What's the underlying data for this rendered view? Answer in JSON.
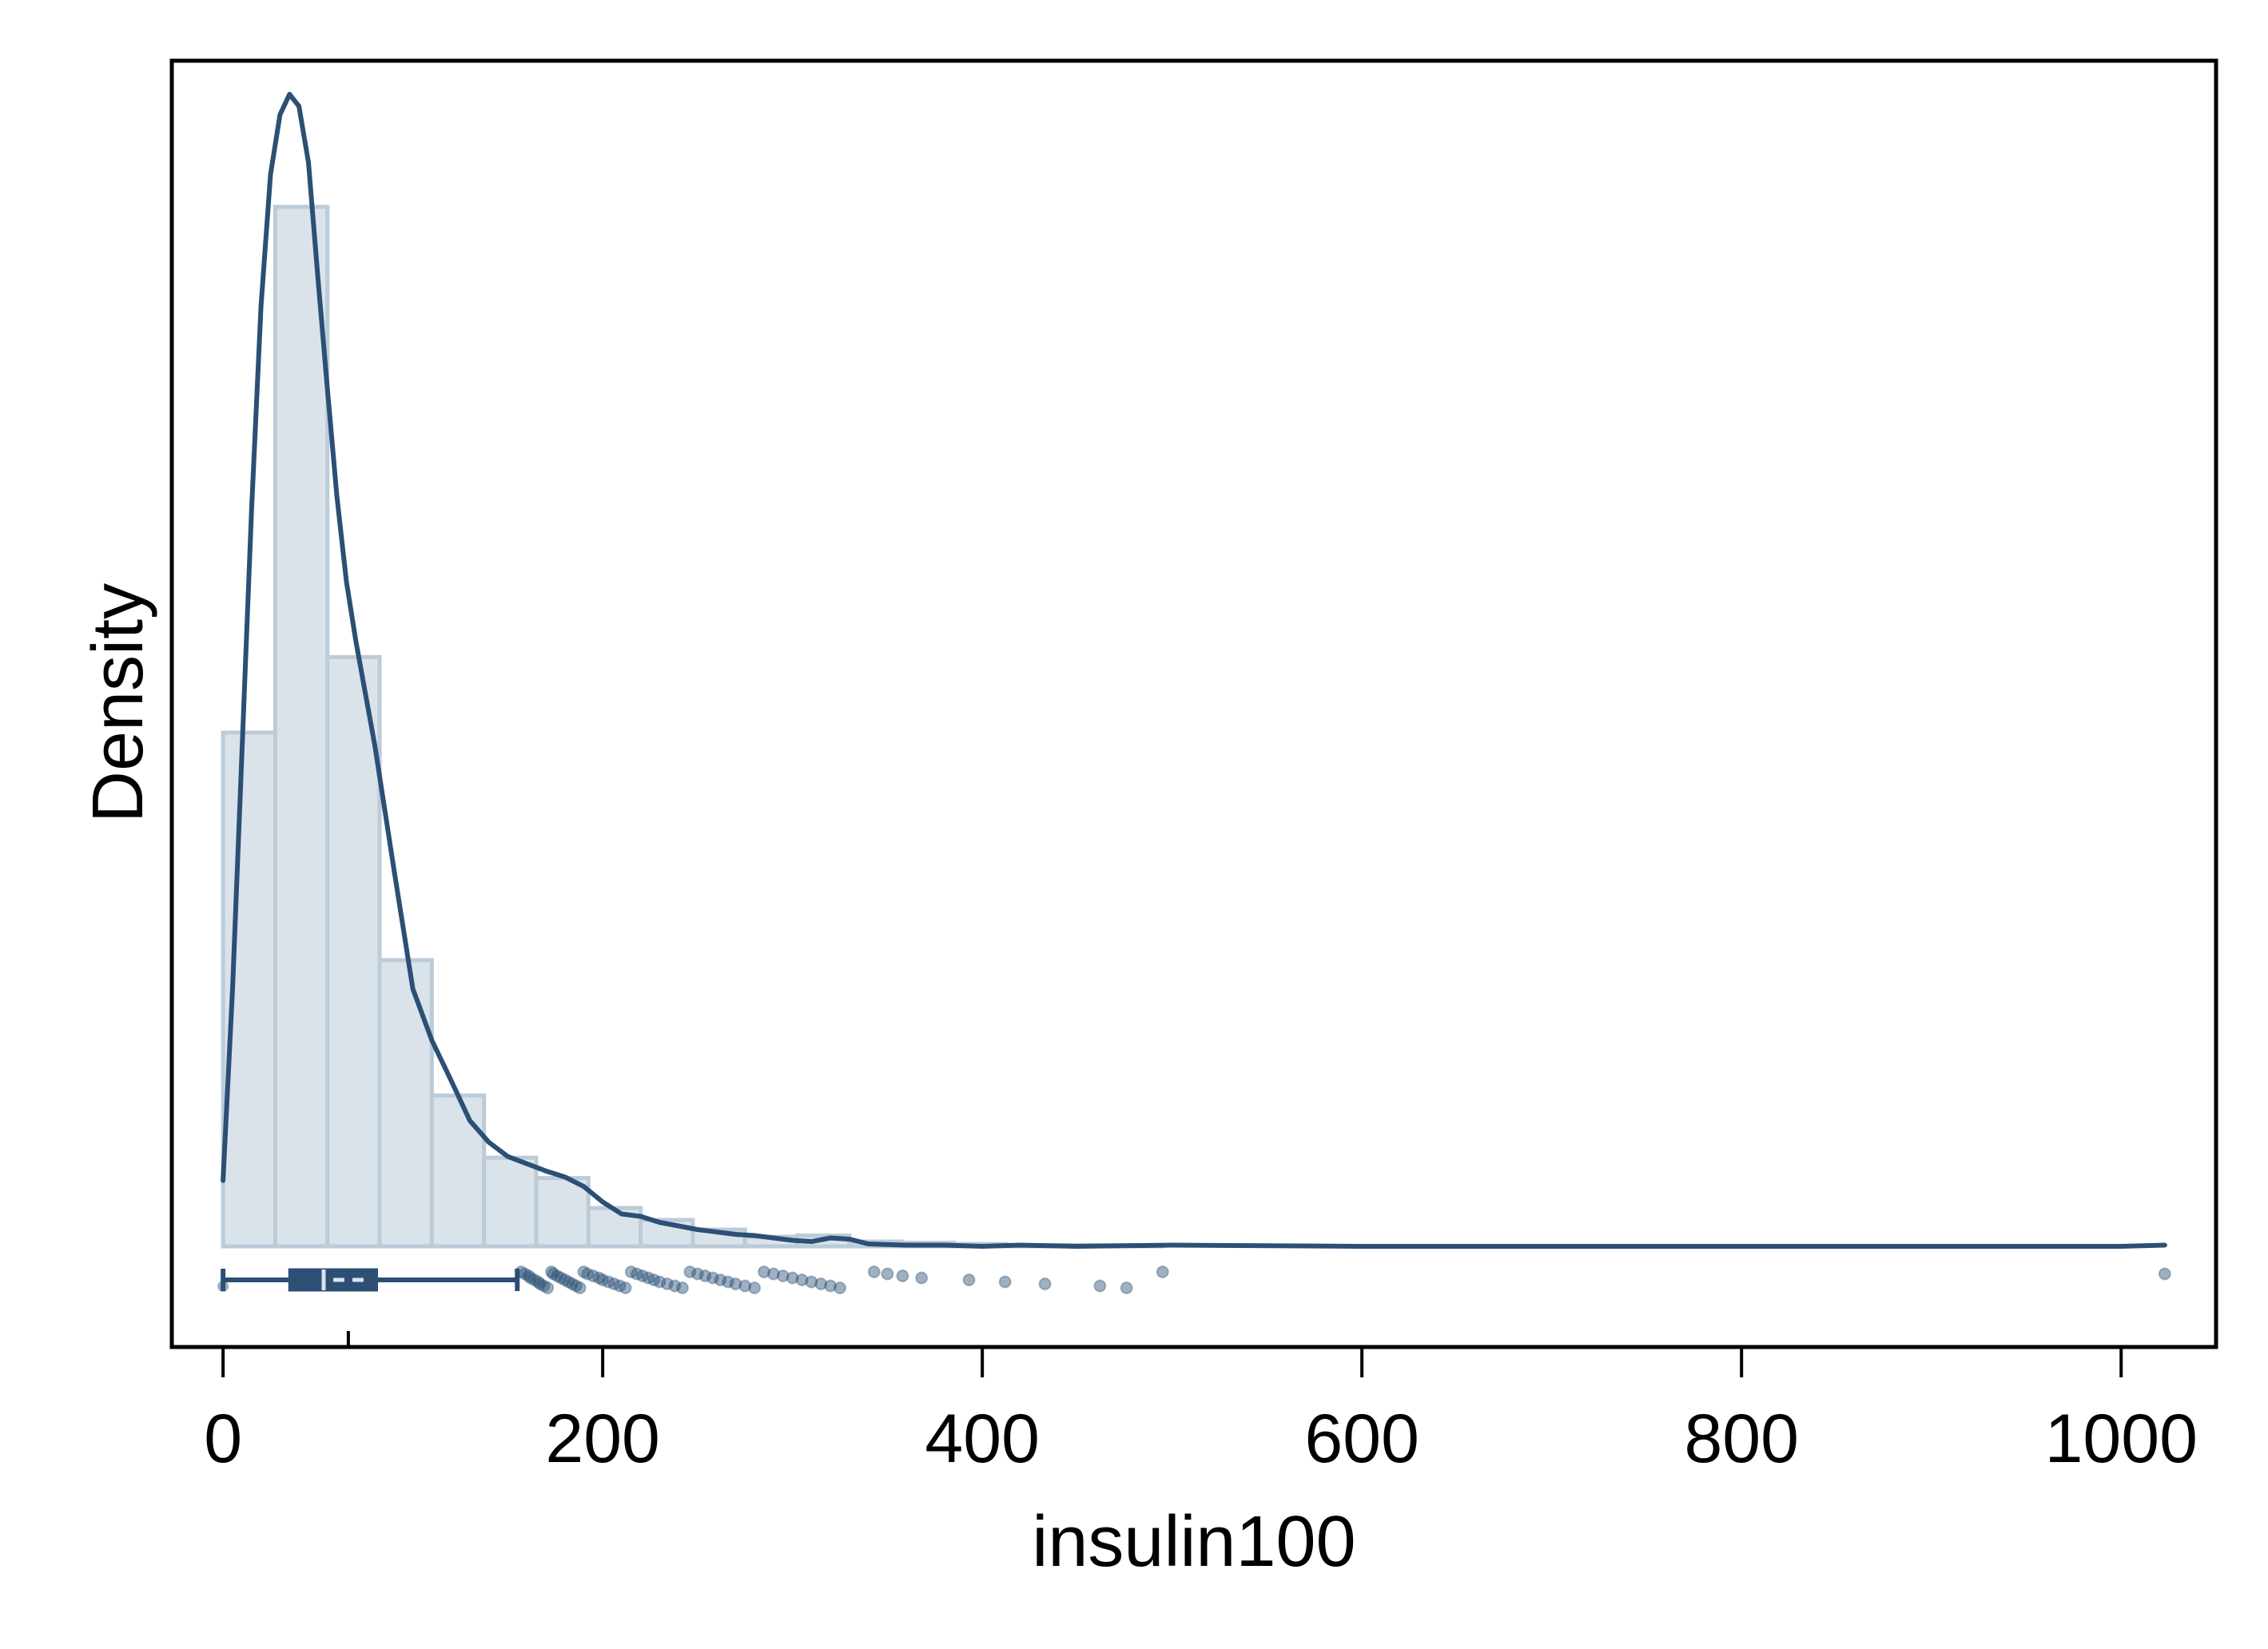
{
  "chart_data": {
    "type": "histogram",
    "title": "",
    "xlabel": "insulin100",
    "ylabel": "Density",
    "xlim": [
      -27,
      1050
    ],
    "ylim": [
      0,
      0.0099
    ],
    "x_ticks": [
      0,
      200,
      400,
      600,
      800,
      1000
    ],
    "y_ticks_shown": false,
    "grid": false,
    "legend": "none",
    "colors": {
      "bar_fill": "#dae3ea",
      "bar_edge": "#bccbd8",
      "line": "#2b4f75",
      "marker": "#2b4f75",
      "axis": "#000000"
    },
    "histogram": {
      "bin_width": 27.5,
      "bins": [
        {
          "x0": 0,
          "x1": 27.5,
          "density": 0.00429
        },
        {
          "x0": 27.5,
          "x1": 55,
          "density": 0.00868
        },
        {
          "x0": 55,
          "x1": 82.5,
          "density": 0.00492
        },
        {
          "x0": 82.5,
          "x1": 110,
          "density": 0.00239
        },
        {
          "x0": 110,
          "x1": 137.5,
          "density": 0.00126
        },
        {
          "x0": 137.5,
          "x1": 165,
          "density": 0.00074
        },
        {
          "x0": 165,
          "x1": 192.5,
          "density": 0.00057
        },
        {
          "x0": 192.5,
          "x1": 220,
          "density": 0.00032
        },
        {
          "x0": 220,
          "x1": 247.5,
          "density": 0.00022
        },
        {
          "x0": 247.5,
          "x1": 275,
          "density": 0.00014
        },
        {
          "x0": 275,
          "x1": 302.5,
          "density": 8e-05
        },
        {
          "x0": 302.5,
          "x1": 330,
          "density": 9e-05
        },
        {
          "x0": 330,
          "x1": 357.5,
          "density": 4e-05
        },
        {
          "x0": 357.5,
          "x1": 385,
          "density": 3e-05
        },
        {
          "x0": 385,
          "x1": 412.5,
          "density": 2e-05
        },
        {
          "x0": 412.5,
          "x1": 440,
          "density": 1e-05
        },
        {
          "x0": 440,
          "x1": 467.5,
          "density": 1e-05
        },
        {
          "x0": 467.5,
          "x1": 495,
          "density": 1e-05
        }
      ]
    },
    "density_curve": {
      "x": [
        0,
        5,
        10,
        15,
        20,
        25,
        30,
        35,
        40,
        45,
        50,
        55,
        60,
        65,
        70,
        80,
        90,
        100,
        110,
        120,
        130,
        140,
        150,
        160,
        170,
        180,
        190,
        200,
        210,
        220,
        230,
        240,
        250,
        260,
        270,
        280,
        290,
        300,
        310,
        320,
        330,
        340,
        360,
        380,
        400,
        420,
        450,
        500,
        600,
        800,
        1000,
        1023
      ],
      "y": [
        0.00055,
        0.00215,
        0.00415,
        0.00615,
        0.00785,
        0.00895,
        0.00945,
        0.00962,
        0.00952,
        0.00905,
        0.00808,
        0.00715,
        0.00626,
        0.00555,
        0.00505,
        0.00418,
        0.00315,
        0.00215,
        0.00172,
        0.00139,
        0.00105,
        0.00087,
        0.00075,
        0.00069,
        0.00063,
        0.00058,
        0.0005,
        0.00037,
        0.00027,
        0.00025,
        0.0002,
        0.00017,
        0.00014,
        0.00012,
        0.0001,
        9e-05,
        7e-05,
        5e-05,
        4e-05,
        7e-05,
        6e-05,
        2e-05,
        1e-05,
        1e-05,
        0.0,
        1e-05,
        0.0,
        1e-05,
        0.0,
        0.0,
        0.0,
        1e-05
      ]
    },
    "boxplot": {
      "whisker_low": 0,
      "q1": 35,
      "median": 53,
      "q3": 81,
      "whisker_high": 155,
      "mean": 66,
      "outliers": [
        157,
        159,
        161,
        162,
        164,
        166,
        167,
        169,
        171,
        173,
        174,
        176,
        178,
        180,
        182,
        184,
        186,
        188,
        190,
        192,
        195,
        198,
        200,
        203,
        206,
        209,
        212,
        215,
        218,
        221,
        224,
        227,
        230,
        234,
        238,
        242,
        246,
        250,
        254,
        258,
        262,
        266,
        270,
        275,
        280,
        285,
        290,
        295,
        300,
        305,
        310,
        315,
        320,
        325,
        343,
        350,
        358,
        368,
        393,
        412,
        433,
        462,
        476,
        495,
        1023
      ]
    }
  }
}
